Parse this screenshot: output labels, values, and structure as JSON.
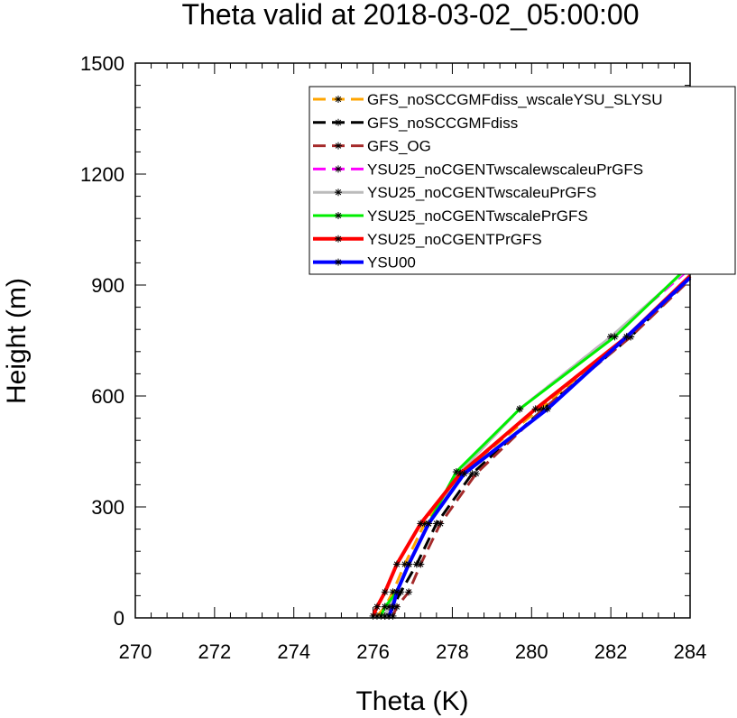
{
  "chart_data": {
    "type": "line",
    "title": "Theta valid at 2018-03-02_05:00:00",
    "xlabel": "Theta (K)",
    "ylabel": "Height (m)",
    "xlim": [
      270,
      284
    ],
    "ylim": [
      0,
      1500
    ],
    "xticks": [
      270,
      272,
      274,
      276,
      278,
      280,
      282,
      284
    ],
    "yticks": [
      0,
      300,
      600,
      900,
      1200,
      1500
    ],
    "legend_position": "top-right",
    "grid": false,
    "series": [
      {
        "name": "GFS_noSCCGMFdiss_wscaleYSU_SLYSU",
        "color": "#FFA500",
        "dash": "dashed",
        "width": 3,
        "x": [
          276.1,
          276.3,
          276.5,
          276.8,
          277.3,
          278.2,
          280.2,
          282.4,
          284.0
        ],
        "y": [
          5,
          30,
          70,
          145,
          255,
          390,
          565,
          760,
          925
        ]
      },
      {
        "name": "GFS_noSCCGMFdiss",
        "color": "#000000",
        "dash": "dashed",
        "width": 3,
        "x": [
          276.4,
          276.5,
          276.7,
          277.1,
          277.6,
          278.5,
          280.3,
          282.5,
          284.0
        ],
        "y": [
          5,
          30,
          70,
          145,
          255,
          390,
          565,
          760,
          920
        ]
      },
      {
        "name": "GFS_OG",
        "color": "#A52A2A",
        "dash": "dashed",
        "width": 3,
        "x": [
          276.5,
          276.6,
          276.9,
          277.2,
          277.7,
          278.6,
          280.3,
          282.5,
          284.0
        ],
        "y": [
          5,
          30,
          70,
          145,
          255,
          390,
          565,
          760,
          915
        ]
      },
      {
        "name": "YSU25_noCGENTwscalewscaleuPrGFS",
        "color": "#FF00FF",
        "dash": "dashed",
        "width": 3,
        "x": [
          276.3,
          276.4,
          276.6,
          276.9,
          277.4,
          278.2,
          279.7,
          282.0,
          284.0
        ],
        "y": [
          5,
          30,
          70,
          145,
          255,
          395,
          565,
          760,
          945
        ]
      },
      {
        "name": "YSU25_noCGENTwscaleuPrGFS",
        "color": "#BBBBBB",
        "dash": "solid",
        "width": 3,
        "x": [
          276.3,
          276.4,
          276.6,
          276.9,
          277.4,
          278.2,
          279.7,
          282.0,
          284.0
        ],
        "y": [
          5,
          30,
          70,
          145,
          255,
          395,
          565,
          760,
          950
        ]
      },
      {
        "name": "YSU25_noCGENTwscalePrGFS",
        "color": "#00EE00",
        "dash": "solid",
        "width": 3,
        "x": [
          276.2,
          276.3,
          276.6,
          276.9,
          277.4,
          278.1,
          279.7,
          282.1,
          284.0
        ],
        "y": [
          5,
          30,
          70,
          145,
          255,
          395,
          565,
          760,
          955
        ]
      },
      {
        "name": "YSU25_noCGENTPrGFS",
        "color": "#FF0000",
        "dash": "solid",
        "width": 4,
        "x": [
          276.0,
          276.1,
          276.3,
          276.6,
          277.2,
          278.2,
          280.1,
          282.4,
          284.0
        ],
        "y": [
          5,
          30,
          70,
          145,
          255,
          390,
          565,
          760,
          925
        ]
      },
      {
        "name": "YSU00",
        "color": "#0000FF",
        "dash": "solid",
        "width": 4,
        "x": [
          276.4,
          276.5,
          276.6,
          276.9,
          277.4,
          278.3,
          280.4,
          282.4,
          284.0
        ],
        "y": [
          5,
          30,
          70,
          145,
          255,
          390,
          565,
          760,
          920
        ]
      }
    ]
  }
}
